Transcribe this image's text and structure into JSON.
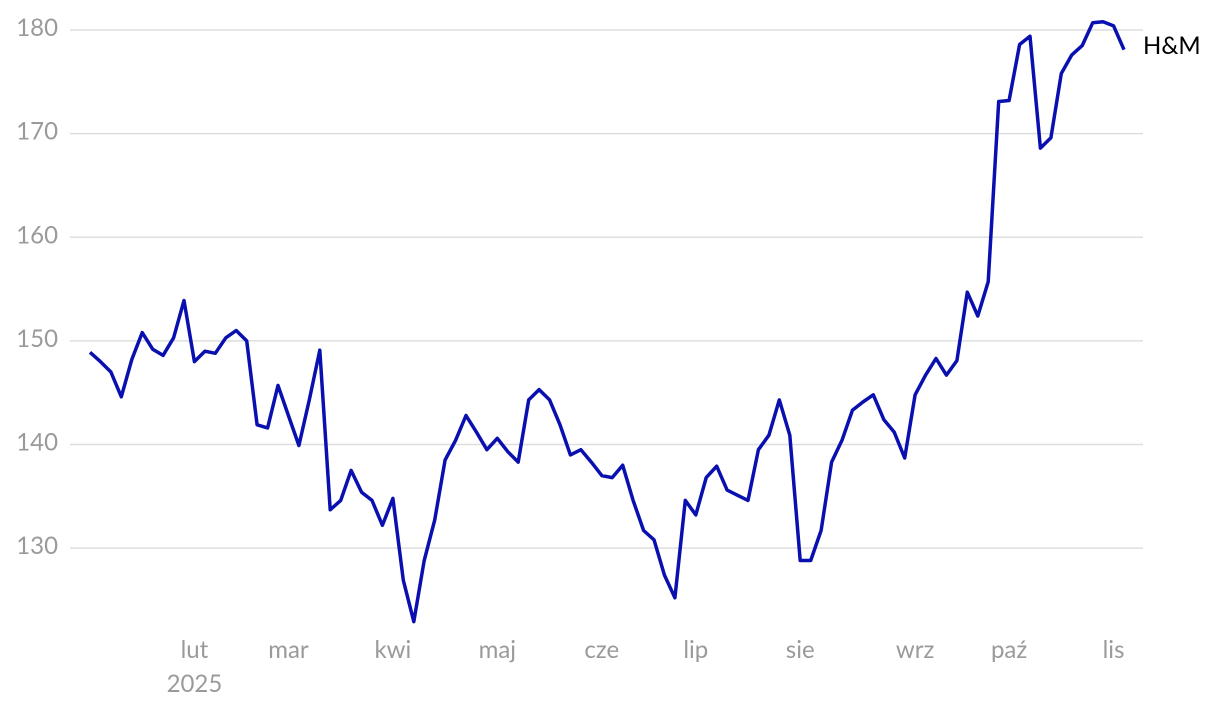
{
  "chart_data": {
    "type": "line",
    "categories": [
      null,
      null,
      null,
      null,
      null,
      null,
      null,
      null,
      null,
      null,
      "lut",
      null,
      null,
      null,
      null,
      null,
      null,
      null,
      null,
      "mar",
      null,
      null,
      null,
      null,
      null,
      null,
      null,
      null,
      null,
      "kwi",
      null,
      null,
      null,
      null,
      null,
      null,
      null,
      null,
      null,
      "maj",
      null,
      null,
      null,
      null,
      null,
      null,
      null,
      null,
      null,
      "cze",
      null,
      null,
      null,
      null,
      null,
      null,
      null,
      null,
      "lip",
      null,
      null,
      null,
      null,
      null,
      null,
      null,
      null,
      null,
      "sie",
      null,
      null,
      null,
      null,
      null,
      null,
      null,
      null,
      null,
      null,
      "wrz",
      null,
      null,
      null,
      null,
      null,
      null,
      null,
      null,
      "paź",
      null,
      null,
      null,
      null,
      null,
      null,
      null,
      null,
      null,
      "lis",
      null
    ],
    "year_label": "2025",
    "series": [
      {
        "name": "H&M",
        "color": "#0a10b0",
        "values": [
          148.9,
          148,
          147,
          144.6,
          148.2,
          150.8,
          149.2,
          148.6,
          150.3,
          153.9,
          148,
          149,
          148.8,
          150.3,
          151,
          150,
          141.9,
          141.6,
          145.7,
          142.8,
          139.9,
          144.3,
          149.1,
          133.7,
          134.6,
          137.5,
          135.4,
          134.6,
          132.2,
          134.8,
          126.9,
          122.9,
          128.8,
          132.7,
          138.5,
          140.4,
          142.8,
          141.2,
          139.5,
          140.6,
          139.3,
          138.3,
          144.3,
          145.3,
          144.3,
          141.9,
          139,
          139.5,
          138.3,
          137,
          136.8,
          138,
          134.6,
          131.7,
          130.8,
          127.4,
          125.2,
          134.6,
          133.2,
          136.8,
          137.9,
          135.6,
          135.1,
          134.6,
          139.5,
          140.9,
          144.3,
          140.9,
          128.8,
          128.8,
          131.7,
          138.3,
          140.4,
          143.3,
          144.1,
          144.8,
          142.4,
          141.2,
          138.7,
          144.8,
          146.7,
          148.3,
          146.7,
          148.1,
          154.7,
          152.4,
          155.7,
          173.1,
          173.2,
          178.6,
          179.4,
          168.6,
          169.6,
          175.8,
          177.6,
          178.5,
          180.7,
          180.8,
          180.4,
          178.1
        ]
      }
    ],
    "ylim": [
      122,
      182
    ],
    "yticks": [
      130,
      140,
      150,
      160,
      170,
      180
    ],
    "grid": true
  }
}
